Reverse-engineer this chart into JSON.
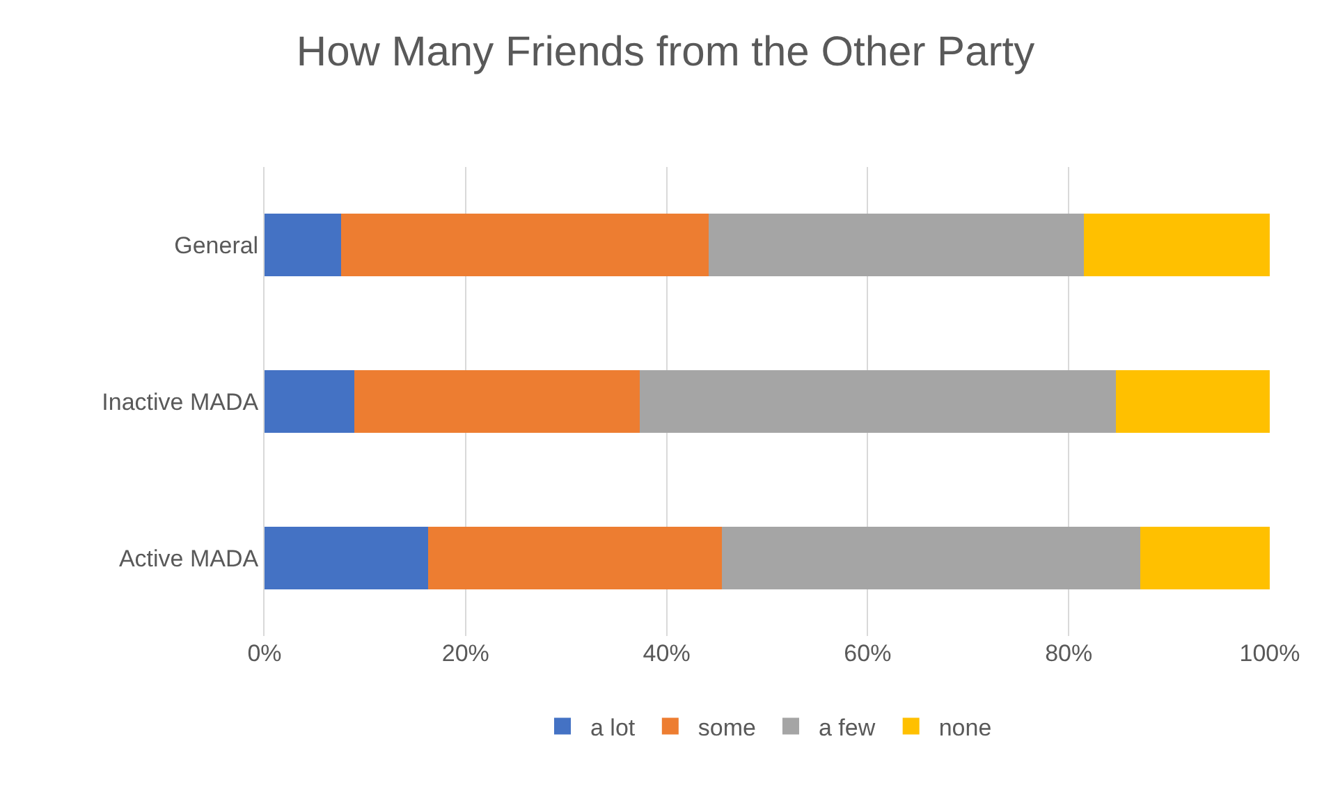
{
  "chart_data": {
    "type": "bar",
    "orientation": "horizontal",
    "stacked": true,
    "title": "How Many Friends from the Other Party",
    "categories": [
      "General",
      "Inactive MADA",
      "Active MADA"
    ],
    "series": [
      {
        "name": "a lot",
        "color": "#4472c4",
        "values": [
          7.6,
          8.9,
          16.3
        ]
      },
      {
        "name": "some",
        "color": "#ed7d31",
        "values": [
          36.6,
          28.4,
          29.2
        ]
      },
      {
        "name": "a few",
        "color": "#a5a5a5",
        "values": [
          37.3,
          47.4,
          41.6
        ]
      },
      {
        "name": "none",
        "color": "#ffc000",
        "values": [
          18.5,
          15.3,
          12.9
        ]
      }
    ],
    "xlim": [
      0,
      100
    ],
    "xticks": [
      {
        "value": 0,
        "label": "0%"
      },
      {
        "value": 20,
        "label": "20%"
      },
      {
        "value": 40,
        "label": "40%"
      },
      {
        "value": 60,
        "label": "60%"
      },
      {
        "value": 80,
        "label": "80%"
      },
      {
        "value": 100,
        "label": "100%"
      }
    ],
    "grid": "x",
    "legend": "bottom"
  }
}
